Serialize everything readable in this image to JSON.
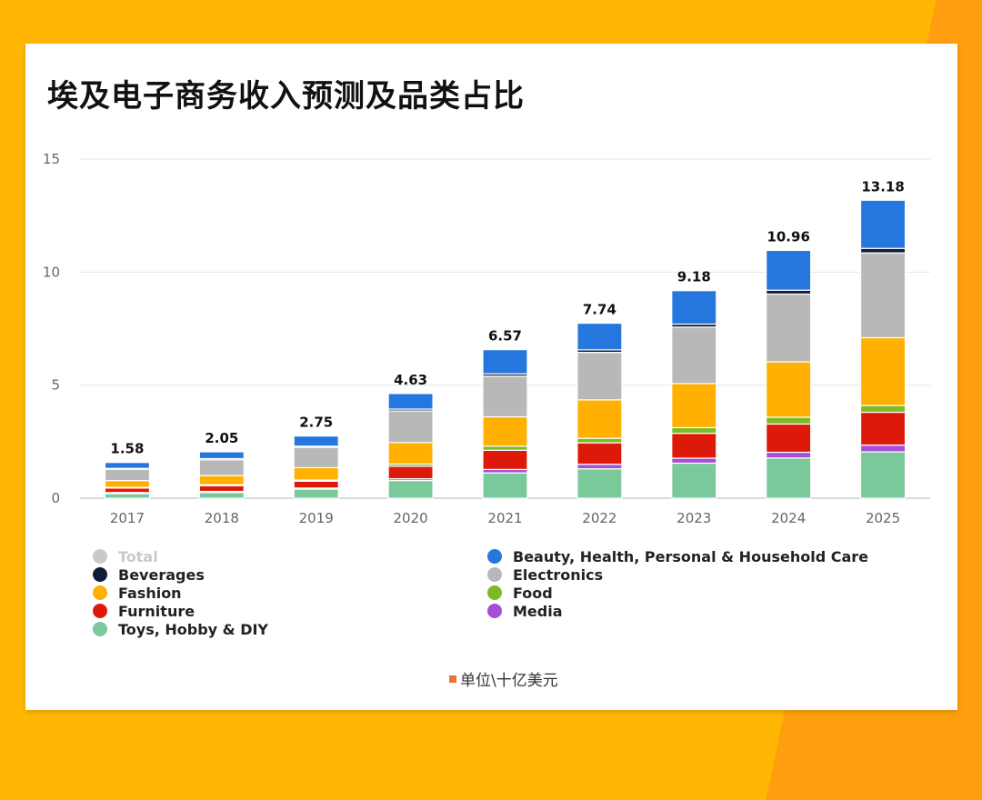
{
  "title": "埃及电子商务收入预测及品类占比",
  "unit_note": "单位\\十亿美元",
  "chart_data": {
    "type": "bar",
    "stacked": true,
    "title": "埃及电子商务收入预测及品类占比",
    "categories": [
      "2017",
      "2018",
      "2019",
      "2020",
      "2021",
      "2022",
      "2023",
      "2024",
      "2025"
    ],
    "ylim": [
      0,
      15
    ],
    "yticks": [
      0,
      5,
      10,
      15
    ],
    "grid": true,
    "totals": [
      1.58,
      2.05,
      2.75,
      4.63,
      6.57,
      7.74,
      9.18,
      10.96,
      13.18
    ],
    "series": [
      {
        "name": "Toys, Hobby & DIY",
        "color": "#7AC99A",
        "values": [
          0.2,
          0.25,
          0.4,
          0.78,
          1.12,
          1.3,
          1.55,
          1.78,
          2.05
        ]
      },
      {
        "name": "Media",
        "color": "#A54FD6",
        "values": [
          0.05,
          0.05,
          0.05,
          0.08,
          0.15,
          0.2,
          0.22,
          0.25,
          0.3
        ]
      },
      {
        "name": "Furniture",
        "color": "#DD1A0A",
        "values": [
          0.2,
          0.25,
          0.3,
          0.55,
          0.85,
          0.95,
          1.1,
          1.25,
          1.45
        ]
      },
      {
        "name": "Food",
        "color": "#7DBB24",
        "values": [
          0.03,
          0.05,
          0.05,
          0.1,
          0.18,
          0.2,
          0.25,
          0.3,
          0.3
        ]
      },
      {
        "name": "Fashion",
        "color": "#FFB000",
        "values": [
          0.3,
          0.4,
          0.55,
          0.95,
          1.3,
          1.7,
          1.95,
          2.45,
          3.0
        ]
      },
      {
        "name": "Electronics",
        "color": "#B8B8B8",
        "values": [
          0.5,
          0.7,
          0.9,
          1.4,
          1.8,
          2.1,
          2.5,
          3.0,
          3.75
        ]
      },
      {
        "name": "Beverages",
        "color": "#0E1E3A",
        "values": [
          0.04,
          0.05,
          0.05,
          0.08,
          0.1,
          0.11,
          0.13,
          0.17,
          0.2
        ]
      },
      {
        "name": "Beauty, Health, Personal & Household Care",
        "color": "#2677DD",
        "values": [
          0.26,
          0.3,
          0.45,
          0.69,
          1.07,
          1.18,
          1.48,
          1.76,
          2.13
        ]
      }
    ],
    "legend": {
      "placement": "bottom",
      "items": [
        {
          "name": "Total",
          "color": "#C9C9C9",
          "muted": true
        },
        {
          "name": "Beauty, Health, Personal & Household Care",
          "color": "#2677DD"
        },
        {
          "name": "Beverages",
          "color": "#0E1E3A"
        },
        {
          "name": "Electronics",
          "color": "#B8B8B8"
        },
        {
          "name": "Fashion",
          "color": "#FFB000"
        },
        {
          "name": "Food",
          "color": "#7DBB24"
        },
        {
          "name": "Furniture",
          "color": "#DD1A0A"
        },
        {
          "name": "Media",
          "color": "#A54FD6"
        },
        {
          "name": "Toys, Hobby & DIY",
          "color": "#7AC99A"
        }
      ]
    }
  }
}
